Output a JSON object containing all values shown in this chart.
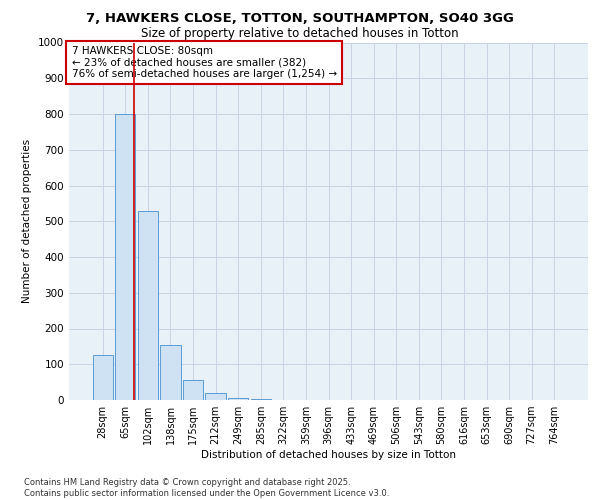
{
  "title": "7, HAWKERS CLOSE, TOTTON, SOUTHAMPTON, SO40 3GG",
  "subtitle": "Size of property relative to detached houses in Totton",
  "xlabel": "Distribution of detached houses by size in Totton",
  "ylabel": "Number of detached properties",
  "bar_labels": [
    "28sqm",
    "65sqm",
    "102sqm",
    "138sqm",
    "175sqm",
    "212sqm",
    "249sqm",
    "285sqm",
    "322sqm",
    "359sqm",
    "396sqm",
    "433sqm",
    "469sqm",
    "506sqm",
    "543sqm",
    "580sqm",
    "616sqm",
    "653sqm",
    "690sqm",
    "727sqm",
    "764sqm"
  ],
  "bar_values": [
    125,
    800,
    530,
    155,
    55,
    20,
    5,
    2,
    0,
    0,
    0,
    0,
    0,
    0,
    0,
    0,
    0,
    0,
    0,
    0,
    0
  ],
  "bar_color": "#cfe2f3",
  "bar_edge_color": "#5b9bd5",
  "grid_color": "#c8d4e3",
  "background_color": "#e8f0f8",
  "ylim": [
    0,
    1000
  ],
  "yticks": [
    0,
    100,
    200,
    300,
    400,
    500,
    600,
    700,
    800,
    900,
    1000
  ],
  "annotation_text": "7 HAWKERS CLOSE: 80sqm\n← 23% of detached houses are smaller (382)\n76% of semi-detached houses are larger (1,254) →",
  "annotation_box_color": "#ffffff",
  "annotation_box_edge": "#cc0000",
  "footer_line1": "Contains HM Land Registry data © Crown copyright and database right 2025.",
  "footer_line2": "Contains public sector information licensed under the Open Government Licence v3.0."
}
